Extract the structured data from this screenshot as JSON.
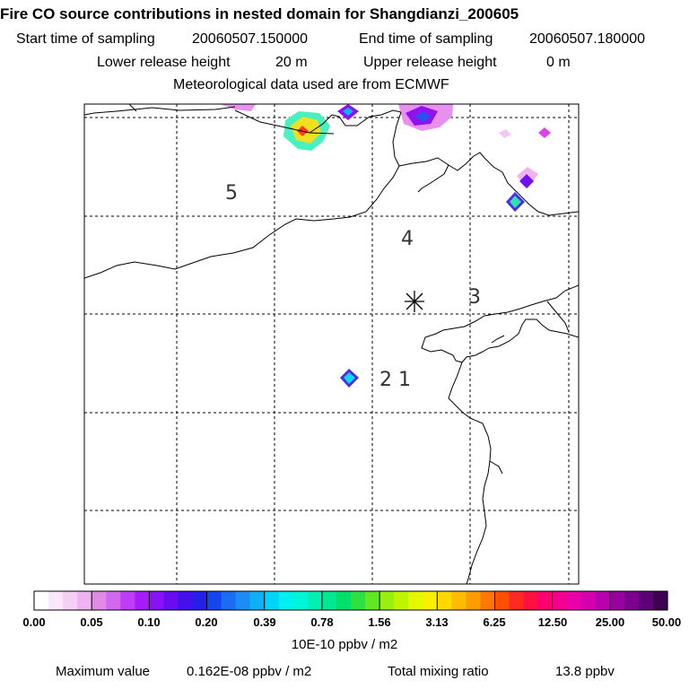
{
  "header": {
    "title": "Fire CO source contributions in nested domain for Shangdianzi_200605",
    "start_label": "Start time of sampling",
    "start_value": "20060507.150000",
    "end_label": "End time of sampling",
    "end_value": "20060507.180000",
    "lower_label": "Lower release height",
    "lower_value": "20 m",
    "upper_label": "Upper release height",
    "upper_value": "0 m",
    "met_line": "Meteorological data used are from ECMWF"
  },
  "map": {
    "labels": [
      "5",
      "4",
      "3",
      "2",
      "1"
    ],
    "receptor": "station-star"
  },
  "colorbar": {
    "ticks": [
      "0.00",
      "0.05",
      "0.10",
      "0.20",
      "0.39",
      "0.78",
      "1.56",
      "3.13",
      "6.25",
      "12.50",
      "25.00",
      "50.00"
    ],
    "colors": [
      "#ffffff",
      "#fbe7fb",
      "#f6cff6",
      "#f0b2f0",
      "#e28ae8",
      "#d268f0",
      "#bf3ef5",
      "#a81cf8",
      "#8a10f6",
      "#6a0cf2",
      "#4510ee",
      "#2420ea",
      "#1446ee",
      "#1a6cf2",
      "#1a8ef6",
      "#10b0f8",
      "#00d4f8",
      "#00f0f0",
      "#00f4d8",
      "#00f0b4",
      "#00e890",
      "#00e068",
      "#30e040",
      "#60e820",
      "#98f010",
      "#c0f400",
      "#e4f800",
      "#f8f000",
      "#ffd800",
      "#ffbc00",
      "#ff9c00",
      "#ff7800",
      "#ff5000",
      "#ff2a20",
      "#ff1040",
      "#ff0070",
      "#f40090",
      "#e800a8",
      "#d400b0",
      "#b800b0",
      "#9a00a0",
      "#7c0090",
      "#5e0078",
      "#3e0050"
    ],
    "units": "10E-10 ppbv / m2"
  },
  "footer": {
    "max_label": "Maximum value",
    "max_value": "0.162E-08 ppbv / m2",
    "total_label": "Total mixing ratio",
    "total_value": "13.8 ppbv"
  }
}
